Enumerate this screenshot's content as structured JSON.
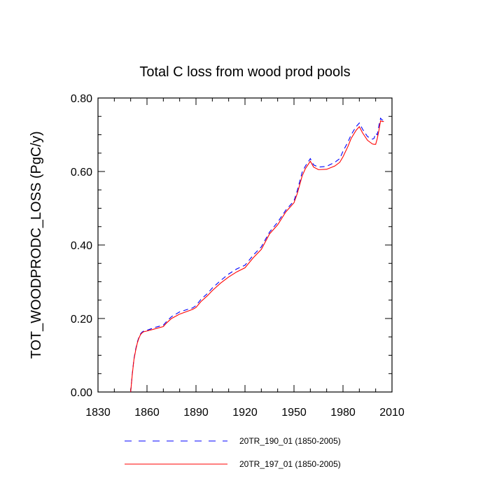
{
  "chart_data": {
    "type": "line",
    "title": "Total C loss from wood prod pools",
    "xlabel": "",
    "ylabel": "TOT_WOODPRODC_LOSS  (PgC/y)",
    "xlim": [
      1830,
      2010
    ],
    "ylim": [
      0,
      0.8
    ],
    "x_ticks": [
      1830,
      1860,
      1890,
      1920,
      1950,
      1980,
      2010
    ],
    "y_ticks": [
      0.0,
      0.2,
      0.4,
      0.6,
      0.8
    ],
    "x_tick_labels": [
      "1830",
      "1860",
      "1890",
      "1920",
      "1950",
      "1980",
      "2010"
    ],
    "y_tick_labels": [
      "0.00",
      "0.20",
      "0.40",
      "0.60",
      "0.80"
    ],
    "grid": false,
    "legend_position": "bottom",
    "series": [
      {
        "name": "20TR_190_01 (1850-2005)",
        "color": "#0000ff",
        "style": "dashed",
        "x": [
          1850,
          1851,
          1852,
          1853,
          1854,
          1855,
          1856,
          1857,
          1858,
          1860,
          1865,
          1870,
          1872,
          1875,
          1880,
          1885,
          1888,
          1890,
          1893,
          1897,
          1900,
          1905,
          1910,
          1915,
          1920,
          1925,
          1930,
          1935,
          1940,
          1945,
          1950,
          1952,
          1955,
          1957,
          1960,
          1962,
          1965,
          1970,
          1975,
          1978,
          1980,
          1983,
          1985,
          1988,
          1990,
          1992,
          1995,
          1998,
          1999,
          2000,
          2001,
          2002,
          2003,
          2004,
          2005
        ],
        "y": [
          0.0,
          0.05,
          0.09,
          0.115,
          0.135,
          0.148,
          0.158,
          0.163,
          0.166,
          0.168,
          0.176,
          0.182,
          0.192,
          0.205,
          0.218,
          0.225,
          0.229,
          0.235,
          0.252,
          0.268,
          0.283,
          0.303,
          0.321,
          0.335,
          0.345,
          0.372,
          0.395,
          0.435,
          0.462,
          0.495,
          0.52,
          0.548,
          0.598,
          0.615,
          0.635,
          0.618,
          0.612,
          0.614,
          0.625,
          0.635,
          0.655,
          0.68,
          0.7,
          0.722,
          0.732,
          0.715,
          0.695,
          0.688,
          0.69,
          0.704,
          0.7,
          0.725,
          0.745,
          0.74,
          0.74
        ]
      },
      {
        "name": "20TR_197_01 (1850-2005)",
        "color": "#ff0000",
        "style": "solid",
        "x": [
          1850,
          1851,
          1852,
          1853,
          1854,
          1855,
          1856,
          1857,
          1858,
          1860,
          1865,
          1870,
          1872,
          1875,
          1880,
          1885,
          1888,
          1890,
          1893,
          1897,
          1900,
          1905,
          1910,
          1915,
          1920,
          1925,
          1930,
          1935,
          1940,
          1945,
          1950,
          1952,
          1955,
          1957,
          1960,
          1962,
          1965,
          1970,
          1975,
          1978,
          1980,
          1983,
          1985,
          1988,
          1990,
          1992,
          1995,
          1998,
          1999,
          2000,
          2001,
          2002,
          2003,
          2004,
          2005
        ],
        "y": [
          0.0,
          0.048,
          0.088,
          0.112,
          0.132,
          0.146,
          0.156,
          0.161,
          0.164,
          0.166,
          0.172,
          0.178,
          0.188,
          0.2,
          0.212,
          0.22,
          0.225,
          0.23,
          0.246,
          0.262,
          0.276,
          0.296,
          0.313,
          0.327,
          0.338,
          0.365,
          0.388,
          0.43,
          0.455,
          0.49,
          0.515,
          0.54,
          0.588,
          0.608,
          0.628,
          0.612,
          0.605,
          0.606,
          0.615,
          0.625,
          0.64,
          0.668,
          0.69,
          0.712,
          0.722,
          0.705,
          0.685,
          0.675,
          0.674,
          0.674,
          0.69,
          0.712,
          0.738,
          0.736,
          0.736
        ]
      }
    ]
  }
}
